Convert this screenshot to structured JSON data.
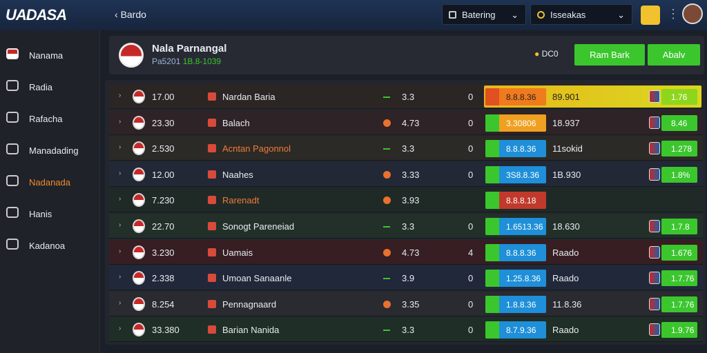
{
  "header": {
    "logo": "UADASA",
    "back": "Bardo",
    "dropdown_1": "Batering",
    "dropdown_2": "Isseakas"
  },
  "sidebar": [
    "Nanama",
    "Radia",
    "Rafacha",
    "Manadading",
    "Nadanada",
    "Hanis",
    "Kadanoa"
  ],
  "panel": {
    "title": "Nala Parnangal",
    "subtitle_code": "Pa5201",
    "subtitle_value": "1B.8-1039",
    "status": "DC0",
    "button_1": "Ram Bark",
    "button_2": "Abalv"
  },
  "table": {
    "rows": [
      {
        "time": "17.00",
        "team": "Nardan Baria",
        "odd": "3.3",
        "score": "0",
        "box_1": "8.8.8.36",
        "box_2": "89.901",
        "box_3": "1.76"
      },
      {
        "time": "23.30",
        "team": "Balach",
        "odd": "4.73",
        "score": "0",
        "box_1": "3.30806",
        "box_2": "18.937",
        "box_3": "8.46"
      },
      {
        "time": "2.530",
        "team": "Acntan Pagonnol",
        "odd": "3.3",
        "score": "0",
        "box_1": "8.8.8.36",
        "box_2": "11sokid",
        "box_3": "1.278"
      },
      {
        "time": "12.00",
        "team": "Naahes",
        "odd": "3.33",
        "score": "0",
        "box_1": "3S8.8.36",
        "box_2": "1B.930",
        "box_3": "1.8%"
      },
      {
        "time": "7.230",
        "team": "Rarenadt",
        "odd": "3.93",
        "box_1": "8.8.8.18"
      },
      {
        "time": "22.70",
        "team": "Sonogt Pareneiad",
        "odd": "3.3",
        "score": "0",
        "box_1": "1.6513.36",
        "box_2": "18.630",
        "box_3": "1.7.8"
      },
      {
        "time": "3.230",
        "team": "Uamais",
        "odd": "4.73",
        "score": "4",
        "box_1": "8.8.8.36",
        "box_2": "Raado",
        "box_3": "1.676"
      },
      {
        "time": "2.338",
        "team": "Umoan Sanaanle",
        "odd": "3.9",
        "score": "0",
        "box_1": "1.25.8.36",
        "box_2": "Raado",
        "box_3": "1.7.76"
      },
      {
        "time": "8.254",
        "team": "Pennagnaard",
        "odd": "3.35",
        "score": "0",
        "box_1": "1.8.8.36",
        "box_2": "11.8.36",
        "box_3": "1.7.76"
      },
      {
        "time": "33.380",
        "team": "Barian Nanida",
        "odd": "3.3",
        "score": "0",
        "box_1": "8.7.9.36",
        "box_2": "Raado",
        "box_3": "1.9.76"
      }
    ]
  }
}
